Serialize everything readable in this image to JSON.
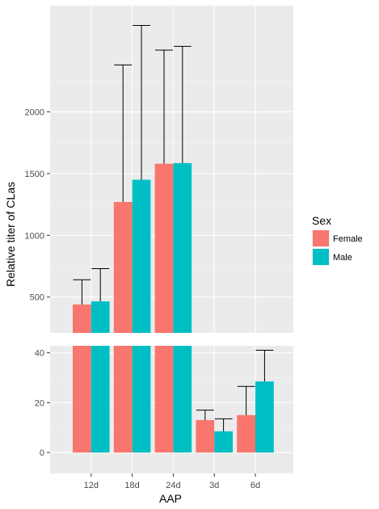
{
  "chart_data": {
    "type": "bar",
    "xlabel": "AAP",
    "ylabel": "Relative titer of CLas",
    "categories": [
      "12d",
      "18d",
      "24d",
      "3d",
      "6d"
    ],
    "legend": {
      "title": "Sex",
      "position": "right"
    },
    "colors": {
      "Female": "#F8766D",
      "Male": "#00BFC4",
      "panel": "#EBEBEB",
      "grid_major": "#FFFFFF",
      "grid_minor": "#F5F5F5",
      "error_bar": "#000000"
    },
    "series": [
      {
        "name": "Female",
        "values": [
          440,
          1270,
          1580,
          13,
          15
        ],
        "error_upper": [
          640,
          2380,
          2500,
          17,
          26.5
        ]
      },
      {
        "name": "Male",
        "values": [
          465,
          1450,
          1585,
          8.5,
          28.5
        ],
        "error_upper": [
          730,
          2700,
          2530,
          13.5,
          41
        ]
      }
    ],
    "panels": [
      {
        "name": "upper",
        "ylim": [
          210,
          2860
        ],
        "yticks": [
          500,
          1000,
          1500,
          2000
        ],
        "ytick_labels": [
          "500",
          "1000",
          "1500",
          "2000"
        ]
      },
      {
        "name": "lower",
        "ylim": [
          -8.4,
          42.8
        ],
        "yticks": [
          0,
          20,
          40
        ],
        "ytick_labels": [
          "0",
          "20",
          "40"
        ]
      }
    ],
    "grid": true
  }
}
